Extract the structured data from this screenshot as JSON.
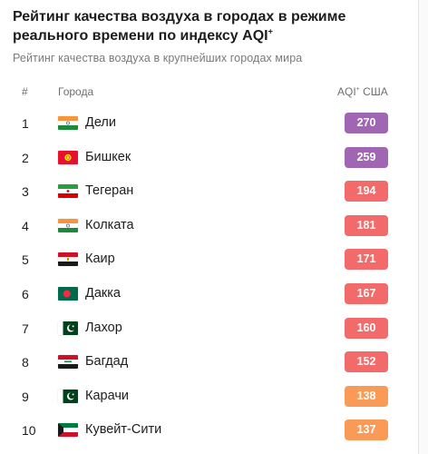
{
  "header": {
    "title": "Рейтинг качества воздуха в городах в режиме реального времени по индексу AQI",
    "title_sup": "+",
    "subtitle": "Рейтинг качества воздуха в крупнейших городах мира"
  },
  "table": {
    "col_rank": "#",
    "col_city": "Города",
    "col_aqi": "AQI",
    "col_aqi_sup": "+",
    "col_aqi_suffix": "США",
    "rows": [
      {
        "rank": "1",
        "city": "Дели",
        "aqi": "270",
        "flag": "india",
        "color": "#a066b3"
      },
      {
        "rank": "2",
        "city": "Бишкек",
        "aqi": "259",
        "flag": "kyrgyzstan",
        "color": "#a066b3"
      },
      {
        "rank": "3",
        "city": "Тегеран",
        "aqi": "194",
        "flag": "iran",
        "color": "#f26a6a"
      },
      {
        "rank": "4",
        "city": "Колката",
        "aqi": "181",
        "flag": "india",
        "color": "#f26a6a"
      },
      {
        "rank": "5",
        "city": "Каир",
        "aqi": "171",
        "flag": "egypt",
        "color": "#f26a6a"
      },
      {
        "rank": "6",
        "city": "Дакка",
        "aqi": "167",
        "flag": "bangladesh",
        "color": "#f26a6a"
      },
      {
        "rank": "7",
        "city": "Лахор",
        "aqi": "160",
        "flag": "pakistan",
        "color": "#f26a6a"
      },
      {
        "rank": "8",
        "city": "Багдад",
        "aqi": "152",
        "flag": "iraq",
        "color": "#f26a6a"
      },
      {
        "rank": "9",
        "city": "Карачи",
        "aqi": "138",
        "flag": "pakistan",
        "color": "#f99a57"
      },
      {
        "rank": "10",
        "city": "Кувейт-Сити",
        "aqi": "137",
        "flag": "kuwait",
        "color": "#f99a57"
      }
    ]
  }
}
